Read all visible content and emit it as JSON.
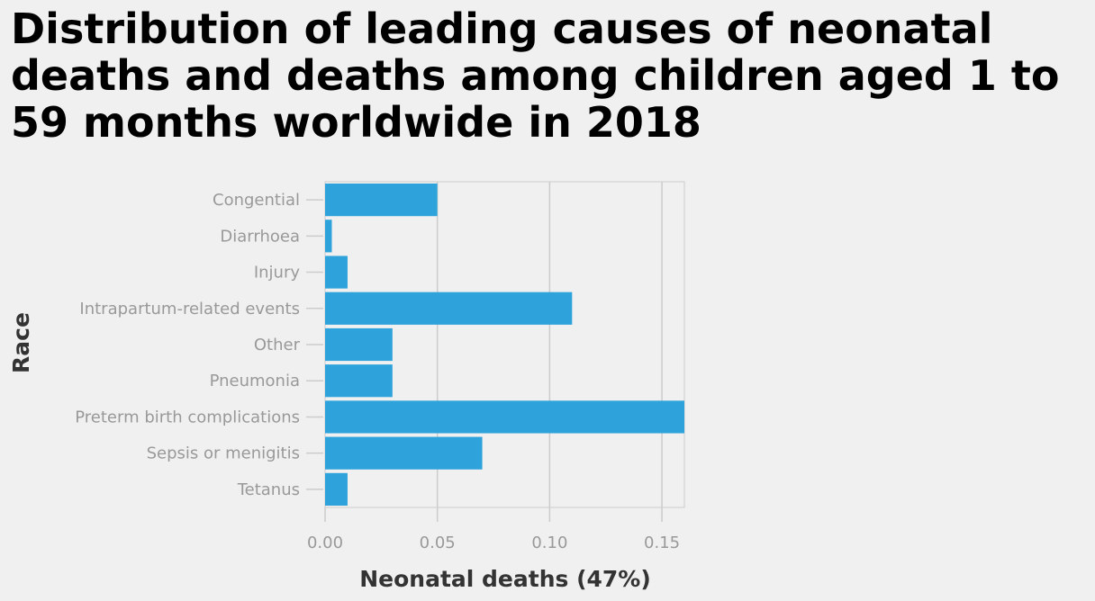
{
  "chart_data": {
    "type": "bar",
    "orientation": "horizontal",
    "title": "Distribution of leading causes of neonatal deaths and deaths among children aged 1 to 59 months worldwide in 2018",
    "xlabel": "Neonatal deaths (47%)",
    "ylabel": "Race",
    "categories": [
      "Congential",
      "Diarrhoea",
      "Injury",
      "Intrapartum-related events",
      "Other",
      "Pneumonia",
      "Preterm birth complications",
      "Sepsis or menigitis",
      "Tetanus"
    ],
    "values": [
      0.05,
      0.003,
      0.01,
      0.11,
      0.03,
      0.03,
      0.16,
      0.07,
      0.01
    ],
    "xlim": [
      0,
      0.16
    ],
    "xticks": [
      "0.00",
      "0.05",
      "0.10",
      "0.15"
    ],
    "xtick_values": [
      0,
      0.05,
      0.1,
      0.15
    ],
    "grid": "vertical",
    "bar_color": "#2ea2db",
    "legend": "none"
  }
}
